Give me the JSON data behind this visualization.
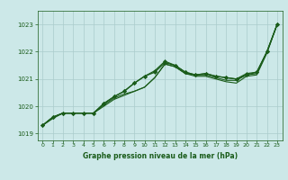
{
  "title": "Graphe pression niveau de la mer (hPa)",
  "bg_color": "#cce8e8",
  "grid_color": "#aacccc",
  "line_color": "#1a5c1a",
  "xlim": [
    -0.5,
    23.5
  ],
  "ylim": [
    1018.75,
    1023.5
  ],
  "yticks": [
    1019,
    1020,
    1021,
    1022,
    1023
  ],
  "xticks": [
    0,
    1,
    2,
    3,
    4,
    5,
    6,
    7,
    8,
    9,
    10,
    11,
    12,
    13,
    14,
    15,
    16,
    17,
    18,
    19,
    20,
    21,
    22,
    23
  ],
  "series": [
    {
      "y": [
        1019.3,
        1019.55,
        1019.75,
        1019.75,
        1019.75,
        1019.75,
        1020.0,
        1020.25,
        1020.4,
        1020.55,
        1020.7,
        1021.05,
        1021.55,
        1021.45,
        1021.2,
        1021.1,
        1021.1,
        1021.0,
        1020.9,
        1020.85,
        1021.1,
        1021.15,
        1021.95,
        1023.0
      ],
      "marker": null,
      "lw": 0.8
    },
    {
      "y": [
        1019.3,
        1019.6,
        1019.75,
        1019.75,
        1019.75,
        1019.75,
        1020.05,
        1020.3,
        1020.45,
        1020.55,
        1020.7,
        1021.05,
        1021.55,
        1021.45,
        1021.2,
        1021.15,
        1021.15,
        1021.05,
        1020.95,
        1020.95,
        1021.15,
        1021.2,
        1022.0,
        1023.0
      ],
      "marker": null,
      "lw": 0.8
    },
    {
      "y": [
        1019.3,
        1019.6,
        1019.75,
        1019.75,
        1019.75,
        1019.75,
        1020.1,
        1020.35,
        1020.55,
        1020.85,
        1021.1,
        1021.25,
        1021.6,
        1021.5,
        1021.25,
        1021.15,
        1021.2,
        1021.1,
        1021.05,
        1021.0,
        1021.15,
        1021.25,
        1022.0,
        1023.0
      ],
      "marker": "D",
      "lw": 0.9
    },
    {
      "y": [
        1019.3,
        1019.6,
        1019.75,
        1019.75,
        1019.75,
        1019.75,
        1020.1,
        1020.35,
        1020.55,
        1020.85,
        1021.1,
        1021.3,
        1021.65,
        1021.5,
        1021.25,
        1021.15,
        1021.2,
        1021.1,
        1021.05,
        1021.0,
        1021.2,
        1021.25,
        1022.0,
        1023.0
      ],
      "marker": "D",
      "lw": 0.9
    }
  ]
}
